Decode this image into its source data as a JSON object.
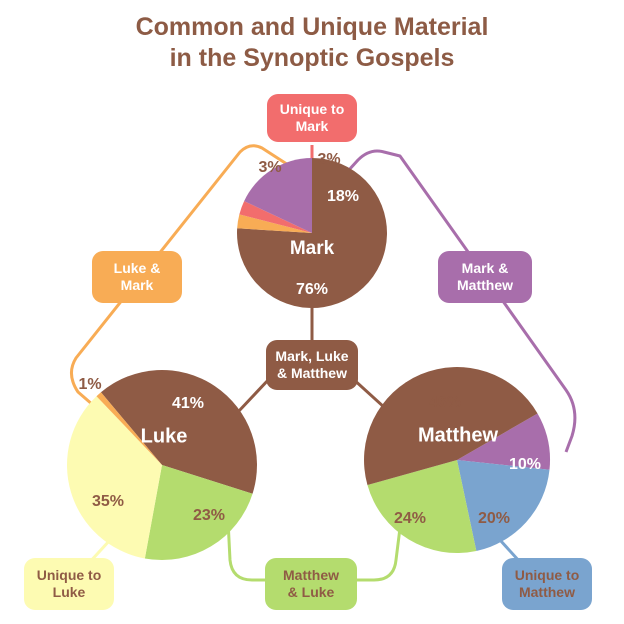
{
  "title": {
    "line1": "Common and Unique Material",
    "line2": "in the Synoptic Gospels"
  },
  "colors": {
    "title": "#8d5b45",
    "mark_luke_matthew": "#8f5b45",
    "unique_mark": "#f26d6d",
    "luke_mark": "#f8ac55",
    "mark_matthew": "#a86eab",
    "matthew_luke": "#b4dc6e",
    "unique_luke": "#fdfbb2",
    "unique_matthew": "#7aa4cf"
  },
  "labels": {
    "unique_mark": [
      "Unique to",
      "Mark"
    ],
    "luke_mark": [
      "Luke &",
      "Mark"
    ],
    "mark_matthew": [
      "Mark &",
      "Matthew"
    ],
    "mark_luke_matthew": [
      "Mark, Luke",
      "& Matthew"
    ],
    "unique_luke": [
      "Unique to",
      "Luke"
    ],
    "matthew_luke": [
      "Matthew",
      "& Luke"
    ],
    "unique_matthew": [
      "Unique to",
      "Matthew"
    ]
  },
  "chart_data": [
    {
      "type": "pie",
      "name": "Mark",
      "slices": [
        {
          "category": "Mark, Luke & Matthew",
          "value": 76,
          "label": "76%"
        },
        {
          "category": "Luke & Mark",
          "value": 3,
          "label": "3%"
        },
        {
          "category": "Unique to Mark",
          "value": 3,
          "label": "3%"
        },
        {
          "category": "Mark & Matthew",
          "value": 18,
          "label": "18%"
        }
      ]
    },
    {
      "type": "pie",
      "name": "Luke",
      "slices": [
        {
          "category": "Mark, Luke & Matthew",
          "value": 41,
          "label": "41%"
        },
        {
          "category": "Matthew & Luke",
          "value": 23,
          "label": "23%"
        },
        {
          "category": "Unique to Luke",
          "value": 35,
          "label": "35%"
        },
        {
          "category": "Luke & Mark",
          "value": 1,
          "label": "1%"
        }
      ]
    },
    {
      "type": "pie",
      "name": "Matthew",
      "slices": [
        {
          "category": "Mark & Matthew",
          "value": 10,
          "label": "10%"
        },
        {
          "category": "Unique to Matthew",
          "value": 20,
          "label": "20%"
        },
        {
          "category": "Matthew & Luke",
          "value": 24,
          "label": "24%"
        },
        {
          "category": "Mark, Luke & Matthew",
          "value": 46,
          "label": "46%"
        }
      ]
    }
  ]
}
